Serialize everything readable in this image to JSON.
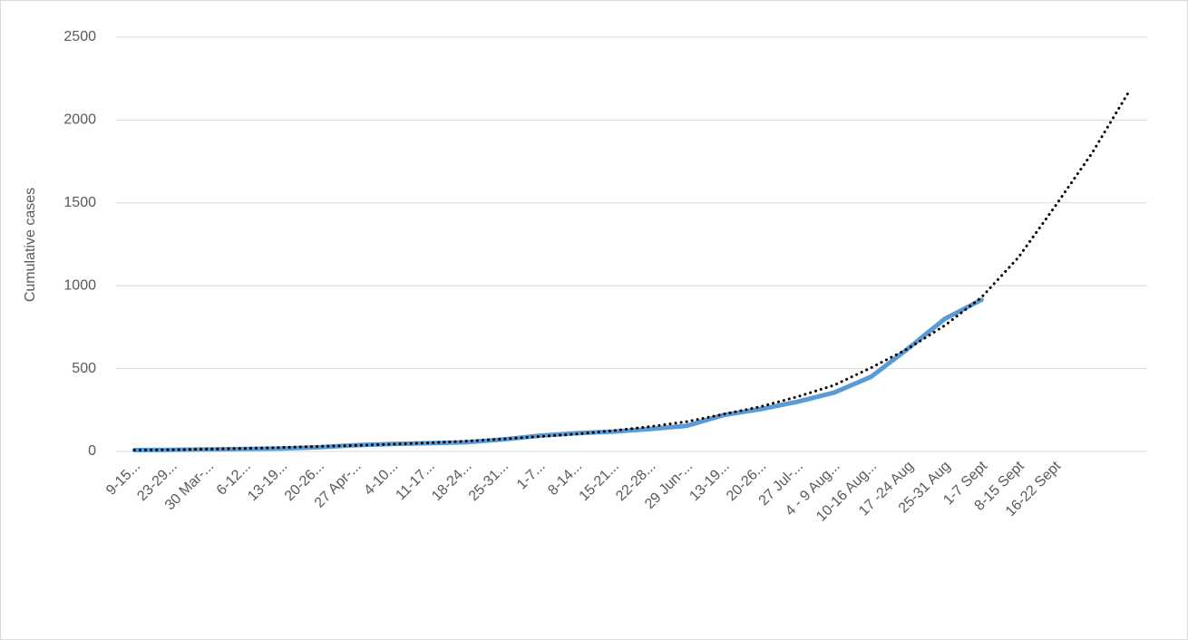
{
  "chart_data": {
    "type": "line",
    "y_label": "Cumulative cases",
    "categories": [
      "9-15...",
      "23-29...",
      "30 Mar-...",
      "6-12...",
      "13-19...",
      "20-26...",
      "27 Apr-...",
      "4-10...",
      "11-17...",
      "18-24...",
      "25-31...",
      "1-7...",
      "8-14...",
      "15-21...",
      "22-28...",
      "29 Jun-...",
      "13-19...",
      "20-26...",
      "27 Jul-...",
      "4 - 9 Aug...",
      "10-16 Aug...",
      "17 -24 Aug",
      "25-31 Aug",
      "1-7 Sept",
      "8-15 Sept",
      "16-22 Sept",
      null,
      null
    ],
    "series": [
      {
        "color": "#5b9bd5",
        "dash": "solid",
        "values": [
          8,
          10,
          12,
          15,
          18,
          25,
          38,
          45,
          50,
          55,
          72,
          95,
          110,
          120,
          135,
          155,
          220,
          255,
          300,
          355,
          450,
          620,
          800,
          915,
          null,
          null,
          null,
          null
        ]
      },
      {
        "color": "#000000",
        "dash": "dotted",
        "values": [
          8,
          10,
          14,
          18,
          24,
          30,
          36,
          44,
          52,
          62,
          75,
          90,
          105,
          125,
          150,
          180,
          225,
          270,
          330,
          400,
          505,
          620,
          760,
          930,
          1170,
          1480,
          1800,
          2170
        ]
      }
    ],
    "ylim": [
      0,
      2500
    ],
    "yticks": [
      0,
      500,
      1000,
      1500,
      2000,
      2500
    ],
    "grid": true
  }
}
